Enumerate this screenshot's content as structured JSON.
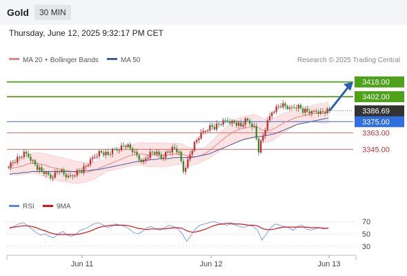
{
  "header": {
    "symbol": "Gold",
    "interval": "30 MIN",
    "datetime": "Thursday, June 12, 2025 9:32:17 PM CET"
  },
  "legend": {
    "ma20_bb": "MA 20 + Bollinger Bands",
    "ma50": "MA 50",
    "credit": "Research © 2025 Trading Central",
    "rsi": "RSI",
    "ma9": "9MA"
  },
  "colors": {
    "up_candle": "#c62f35",
    "down_candle": "#3a8a2e",
    "bollinger_fill": "#fde0e0",
    "ma20": "#e8837f",
    "ma50": "#3d5f9b",
    "green_level": "#4ea21a",
    "blue_level": "#2f6fe0",
    "red_level": "#e06a66",
    "current_price": "#333333",
    "arrow": "#2b62b0",
    "rsi_line": "#5b86e5",
    "rsi_ma": "#e01010"
  },
  "chart_data": [
    {
      "type": "candlestick",
      "title": "Gold",
      "timeframe": "30 MIN",
      "x_tick_labels": [
        "Jun 11",
        "Jun 12",
        "Jun 13"
      ],
      "ylim": [
        3296,
        3435
      ],
      "current_price": "3386.69",
      "levels": [
        {
          "value": 3418.0,
          "label": "3418.00",
          "kind": "resistance"
        },
        {
          "value": 3402.0,
          "label": "3402.00",
          "kind": "resistance"
        },
        {
          "value": 3375.0,
          "label": "3375.00",
          "kind": "pivot"
        },
        {
          "value": 3363.0,
          "label": "3363.00",
          "kind": "support"
        },
        {
          "value": 3345.0,
          "label": "3345.00",
          "kind": "support"
        }
      ],
      "forecast_arrow": {
        "from": 3387,
        "to": 3418
      },
      "close_path": [
        3326,
        3329,
        3333,
        3336,
        3340,
        3338,
        3332,
        3325,
        3321,
        3318,
        3315,
        3319,
        3323,
        3318,
        3314,
        3317,
        3321,
        3322,
        3327,
        3332,
        3338,
        3342,
        3341,
        3339,
        3343,
        3345,
        3348,
        3350,
        3346,
        3340,
        3335,
        3332,
        3338,
        3342,
        3340,
        3336,
        3341,
        3344,
        3346,
        3340,
        3322,
        3333,
        3346,
        3355,
        3361,
        3366,
        3370,
        3369,
        3372,
        3374,
        3376,
        3375,
        3373,
        3370,
        3376,
        3374,
        3369,
        3344,
        3360,
        3374,
        3386,
        3390,
        3393,
        3392,
        3388,
        3391,
        3392,
        3387,
        3386,
        3384,
        3387,
        3385,
        3386.69
      ],
      "ma20_path": [
        3324,
        3325,
        3326,
        3327,
        3329,
        3330,
        3330,
        3329,
        3328,
        3326,
        3325,
        3324,
        3323,
        3322,
        3321,
        3320,
        3320,
        3320,
        3321,
        3322,
        3324,
        3326,
        3328,
        3330,
        3332,
        3334,
        3336,
        3338,
        3339,
        3340,
        3340,
        3339,
        3339,
        3339,
        3339,
        3339,
        3339,
        3340,
        3340,
        3340,
        3338,
        3337,
        3337,
        3338,
        3340,
        3343,
        3347,
        3351,
        3355,
        3359,
        3362,
        3365,
        3367,
        3368,
        3369,
        3370,
        3369,
        3366,
        3365,
        3366,
        3368,
        3371,
        3374,
        3376,
        3378,
        3380,
        3381,
        3382,
        3383,
        3384,
        3384,
        3384,
        3385
      ],
      "ma50_path": [
        3318,
        3319,
        3319,
        3320,
        3320,
        3321,
        3321,
        3321,
        3321,
        3321,
        3321,
        3321,
        3321,
        3321,
        3321,
        3321,
        3322,
        3322,
        3322,
        3323,
        3323,
        3324,
        3325,
        3326,
        3327,
        3328,
        3329,
        3330,
        3331,
        3332,
        3333,
        3333,
        3334,
        3334,
        3335,
        3335,
        3335,
        3336,
        3336,
        3336,
        3336,
        3336,
        3337,
        3338,
        3339,
        3340,
        3342,
        3344,
        3346,
        3348,
        3350,
        3352,
        3354,
        3356,
        3357,
        3358,
        3359,
        3359,
        3360,
        3361,
        3362,
        3364,
        3366,
        3368,
        3370,
        3372,
        3373,
        3374,
        3375,
        3376,
        3377,
        3378,
        3379
      ]
    },
    {
      "type": "line",
      "title": "RSI",
      "ylim": [
        20,
        80
      ],
      "y_ticks": [
        "70",
        "50",
        "30"
      ],
      "series": [
        {
          "name": "RSI",
          "values": [
            58,
            62,
            66,
            68,
            64,
            58,
            52,
            48,
            50,
            46,
            44,
            50,
            54,
            48,
            46,
            50,
            56,
            58,
            62,
            66,
            68,
            65,
            60,
            62,
            66,
            64,
            62,
            58,
            52,
            50,
            54,
            60,
            62,
            58,
            56,
            60,
            64,
            62,
            58,
            50,
            38,
            48,
            58,
            64,
            66,
            68,
            70,
            68,
            66,
            64,
            66,
            64,
            62,
            60,
            64,
            62,
            56,
            40,
            50,
            60,
            66,
            64,
            62,
            60,
            56,
            62,
            64,
            58,
            56,
            58,
            60,
            58,
            60
          ]
        },
        {
          "name": "9MA",
          "values": [
            60,
            61,
            62,
            63,
            63,
            62,
            60,
            57,
            55,
            52,
            50,
            49,
            49,
            49,
            49,
            49,
            50,
            52,
            54,
            57,
            60,
            62,
            63,
            64,
            64,
            64,
            64,
            63,
            61,
            59,
            58,
            57,
            58,
            58,
            58,
            58,
            59,
            60,
            60,
            59,
            55,
            53,
            53,
            55,
            57,
            60,
            63,
            65,
            66,
            67,
            67,
            66,
            66,
            65,
            64,
            64,
            63,
            59,
            57,
            57,
            58,
            60,
            61,
            61,
            61,
            61,
            61,
            61,
            60,
            60,
            60,
            59,
            59
          ]
        }
      ]
    }
  ]
}
